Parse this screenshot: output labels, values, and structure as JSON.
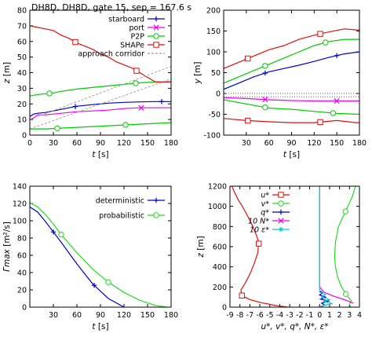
{
  "figure": {
    "title": "DH8D, DH8D, gate 15, sep = 167.6 s"
  },
  "colors": {
    "starboard": "#0000cc",
    "port": "#ee00ee",
    "p2p": "#00cc00",
    "shape": "#dd1111",
    "corridor": "#999999",
    "deterministic": "#0000cc",
    "probabilistic": "#22dd22",
    "u": "#dd1111",
    "v": "#22dd22",
    "q": "#0000cc",
    "N": "#ee00ee",
    "eps": "#00cccc"
  },
  "chart_data": [
    {
      "type": "line",
      "panel": "z-vs-t",
      "xlabel": "t [s]",
      "ylabel": "z [m]",
      "xlim": [
        0,
        180
      ],
      "ylim": [
        0,
        80
      ],
      "xticks": [
        0,
        30,
        60,
        90,
        120,
        150,
        180
      ],
      "yticks": [
        0,
        10,
        20,
        30,
        40,
        50,
        60,
        70,
        80
      ],
      "legend": "top-right",
      "series": [
        {
          "name": "starboard",
          "marker": "+",
          "x": [
            0,
            5,
            10,
            20,
            30,
            40,
            60,
            80,
            100,
            120,
            140,
            160,
            180
          ],
          "y": [
            12,
            13.5,
            14,
            14.5,
            15.5,
            16.5,
            18.5,
            19.5,
            20.5,
            21,
            21.3,
            21.5,
            21.5
          ],
          "marks_x": [
            58,
            168
          ]
        },
        {
          "name": "port",
          "marker": "x",
          "x": [
            0,
            5,
            10,
            20,
            30,
            40,
            60,
            80,
            100,
            120,
            140,
            160,
            180
          ],
          "y": [
            10,
            11,
            13,
            13,
            13.5,
            14,
            15,
            15.5,
            16,
            17,
            17.5,
            17.5,
            17.5
          ],
          "marks_x": [
            142
          ]
        },
        {
          "name": "P2P",
          "marker": "o",
          "x": [
            0,
            10,
            20,
            30,
            40,
            60,
            80,
            100,
            120,
            140,
            160,
            180
          ],
          "y": [
            25,
            26,
            26.5,
            27,
            28,
            29.5,
            30.5,
            31.5,
            32.5,
            33.5,
            34,
            34.2
          ],
          "marks_x": [
            25,
            135
          ]
        },
        {
          "name": "SHAPe",
          "marker": "s",
          "x": [
            0,
            10,
            20,
            30,
            40,
            50,
            60,
            70,
            80,
            90,
            100,
            110,
            120,
            130,
            140,
            150,
            160,
            180
          ],
          "y": [
            70,
            69,
            68,
            67,
            64,
            62,
            59,
            57,
            55,
            52,
            50,
            47,
            45,
            43,
            40,
            37,
            34,
            34
          ],
          "marks_x": [
            58,
            136
          ]
        },
        {
          "name": "",
          "marker": "o",
          "x": [
            0,
            20,
            40,
            60,
            80,
            100,
            120,
            140,
            160,
            180
          ],
          "y": [
            4,
            4,
            4.5,
            5,
            5.5,
            6,
            6.5,
            7,
            7.5,
            8
          ],
          "marks_x": [
            35,
            122
          ]
        },
        {
          "name": "approach corridor",
          "marker": "",
          "style": "dashed",
          "x": [
            0,
            180
          ],
          "y": [
            10,
            44
          ]
        },
        {
          "name": "",
          "marker": "",
          "style": "dashed",
          "x": [
            0,
            180
          ],
          "y": [
            4,
            36
          ]
        }
      ]
    },
    {
      "type": "line",
      "panel": "y-vs-t",
      "xlabel": "t [s]",
      "ylabel": "y [m]",
      "xlim": [
        0,
        180
      ],
      "ylim": [
        -100,
        200
      ],
      "xticks": [
        30,
        60,
        90,
        120,
        150,
        180
      ],
      "yticks": [
        -100,
        -50,
        0,
        50,
        100,
        150,
        200
      ],
      "series": [
        {
          "name": "SHAPe",
          "marker": "s",
          "x": [
            0,
            20,
            40,
            60,
            80,
            100,
            120,
            140,
            160,
            180
          ],
          "y": [
            60,
            75,
            90,
            105,
            115,
            130,
            140,
            148,
            155,
            152
          ],
          "marks_x": [
            32,
            128
          ]
        },
        {
          "name": "P2P",
          "marker": "o",
          "x": [
            0,
            20,
            40,
            60,
            80,
            100,
            120,
            140,
            160,
            180
          ],
          "y": [
            25,
            40,
            55,
            70,
            85,
            100,
            115,
            125,
            130,
            130
          ],
          "marks_x": [
            55,
            135
          ]
        },
        {
          "name": "starboard",
          "marker": "+",
          "x": [
            0,
            20,
            40,
            60,
            80,
            100,
            120,
            140,
            160,
            180
          ],
          "y": [
            10,
            25,
            40,
            52,
            60,
            68,
            77,
            87,
            95,
            100
          ],
          "marks_x": [
            55,
            150
          ]
        },
        {
          "name": "port",
          "marker": "x",
          "x": [
            0,
            30,
            60,
            90,
            120,
            150,
            180
          ],
          "y": [
            -10,
            -12,
            -15,
            -17,
            -18,
            -18,
            -18
          ],
          "marks_x": [
            55,
            150
          ]
        },
        {
          "name": "",
          "marker": "o",
          "x": [
            0,
            30,
            60,
            90,
            120,
            150,
            180
          ],
          "y": [
            -15,
            -25,
            -35,
            -38,
            -43,
            -48,
            -50
          ],
          "marks_x": [
            55,
            145
          ]
        },
        {
          "name": "",
          "marker": "s",
          "x": [
            0,
            30,
            60,
            90,
            120,
            150,
            175,
            180
          ],
          "y": [
            -60,
            -65,
            -68,
            -70,
            -70,
            -65,
            -70,
            -70
          ],
          "marks_x": [
            32,
            128
          ]
        },
        {
          "name": "",
          "marker": "",
          "style": "dotted",
          "x": [
            0,
            180
          ],
          "y": [
            0,
            0
          ]
        },
        {
          "name": "",
          "marker": "",
          "style": "dotted",
          "x": [
            0,
            180
          ],
          "y": [
            -8,
            -8
          ]
        }
      ]
    },
    {
      "type": "line",
      "panel": "gamma-vs-t",
      "xlabel": "t [s]",
      "ylabel": "Γmax [m²/s]",
      "xlim": [
        0,
        180
      ],
      "ylim": [
        0,
        140
      ],
      "xticks": [
        30,
        60,
        90,
        120,
        150,
        180
      ],
      "yticks": [
        0,
        20,
        40,
        60,
        80,
        100,
        120,
        140
      ],
      "legend": "top-right",
      "series": [
        {
          "name": "deterministic",
          "marker": "+",
          "x": [
            0,
            10,
            20,
            30,
            40,
            60,
            80,
            100,
            120
          ],
          "y": [
            116,
            110,
            99,
            87,
            75,
            50,
            27,
            10,
            0
          ],
          "marks_x": [
            30,
            82
          ]
        },
        {
          "name": "probabilistic",
          "marker": "o",
          "x": [
            0,
            10,
            20,
            30,
            40,
            60,
            80,
            100,
            120,
            140,
            160,
            175
          ],
          "y": [
            121,
            116,
            107,
            96,
            84,
            63,
            44,
            29,
            17,
            8,
            2,
            0
          ],
          "marks_x": [
            40,
            100
          ]
        }
      ]
    },
    {
      "type": "line",
      "panel": "profiles",
      "xlabel": "u*, v*, q*, N*, ε*",
      "ylabel": "z [m]",
      "xlim": [
        -9,
        4
      ],
      "ylim": [
        0,
        1200
      ],
      "xticks": [
        -9,
        -8,
        -7,
        -6,
        -5,
        -4,
        -3,
        -2,
        -1,
        0,
        1,
        2,
        3,
        4
      ],
      "yticks": [
        0,
        200,
        400,
        600,
        800,
        1000,
        1200
      ],
      "legend": "top-right",
      "series": [
        {
          "name": "u*",
          "marker": "s",
          "x": [
            -8.8,
            -8.6,
            -8.2,
            -7.7,
            -7.2,
            -6.7,
            -6.3,
            -6.1,
            -6.2,
            -6.5,
            -6.9,
            -7.4,
            -7.9,
            -7.8,
            -7.0,
            -5.9,
            -4.3,
            -3.2
          ],
          "y": [
            1200,
            1150,
            1070,
            990,
            900,
            800,
            700,
            640,
            540,
            450,
            350,
            250,
            170,
            115,
            75,
            45,
            15,
            0
          ],
          "marks_y": [
            630,
            115
          ]
        },
        {
          "name": "v*",
          "marker": "o",
          "x": [
            3.6,
            3.3,
            2.6,
            1.9,
            1.6,
            1.5,
            1.6,
            1.8,
            2.2,
            2.7,
            3.2,
            3.0,
            3.1
          ],
          "y": [
            1200,
            1100,
            950,
            800,
            650,
            500,
            400,
            300,
            200,
            120,
            60,
            30,
            0
          ],
          "marks_y": [
            950,
            130
          ]
        },
        {
          "name": "q*",
          "marker": "+",
          "x": [
            0,
            0.5,
            0.2,
            0.9,
            0.1,
            0.6,
            0,
            0.3,
            0.05
          ],
          "y": [
            0,
            20,
            40,
            60,
            80,
            100,
            120,
            140,
            160
          ]
        },
        {
          "name": "10 N*",
          "marker": "x",
          "x": [
            0,
            0,
            0.4,
            1.4,
            2.6,
            3.4
          ],
          "y": [
            1200,
            200,
            150,
            110,
            70,
            40
          ]
        },
        {
          "name": "10 ε*",
          "marker": "*",
          "x": [
            0,
            0,
            0.6,
            0.2,
            1.0,
            0.4,
            1.3,
            0.3,
            0
          ],
          "y": [
            1200,
            150,
            125,
            100,
            75,
            55,
            35,
            15,
            0
          ]
        }
      ]
    }
  ]
}
